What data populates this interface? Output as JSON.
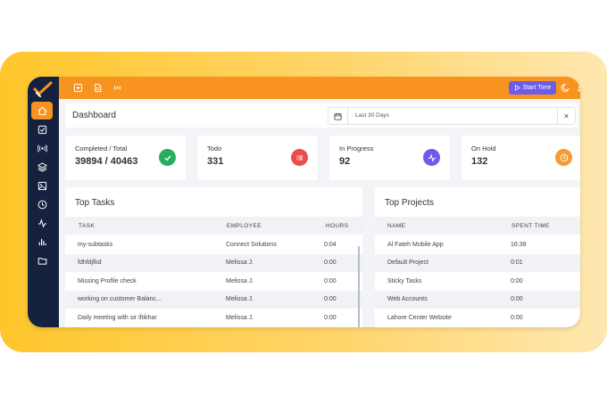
{
  "header": {
    "title": "Dashboard",
    "date_range": "Last 30 Days",
    "clear": "×"
  },
  "topbar": {
    "start_label": "Start Time"
  },
  "stats": [
    {
      "label": "Completed / Total",
      "value": "39894 / 40463",
      "color": "#27ae60",
      "icon": "check-icon"
    },
    {
      "label": "Todo",
      "value": "331",
      "color": "#eb4d4b",
      "icon": "list-icon"
    },
    {
      "label": "In Progress",
      "value": "92",
      "color": "#6c5ce7",
      "icon": "activity-icon"
    },
    {
      "label": "On Hold",
      "value": "132",
      "color": "#f39c32",
      "icon": "clock-icon"
    }
  ],
  "top_tasks": {
    "title": "Top Tasks",
    "columns": [
      "TASK",
      "EMPLOYEE",
      "HOURS"
    ],
    "rows": [
      {
        "task": "my-subtasks",
        "employee": "Connect Solutions",
        "hours": "0:04"
      },
      {
        "task": "fdhfdjfkd",
        "employee": "Melissa J.",
        "hours": "0:00"
      },
      {
        "task": "Missing Profile check",
        "employee": "Melissa J.",
        "hours": "0:00"
      },
      {
        "task": "working on customer Balanc...",
        "employee": "Melissa J.",
        "hours": "0:00"
      },
      {
        "task": "Daily meeting with sir iftikhar",
        "employee": "Melissa J.",
        "hours": "0:00"
      }
    ]
  },
  "top_projects": {
    "title": "Top Projects",
    "columns": [
      "NAME",
      "SPENT TIME"
    ],
    "rows": [
      {
        "name": "Al Fateh Mobile App",
        "time": "16:39"
      },
      {
        "name": "Default Project",
        "time": "0:01"
      },
      {
        "name": "Sticky Tasks",
        "time": "0:00"
      },
      {
        "name": "Web Accounts",
        "time": "0:00"
      },
      {
        "name": "Lahore Center Website",
        "time": "0:00"
      }
    ]
  },
  "colors": {
    "accent": "#f7931e",
    "sidebar": "#16213e",
    "brand_purple": "#6c5ce7"
  }
}
